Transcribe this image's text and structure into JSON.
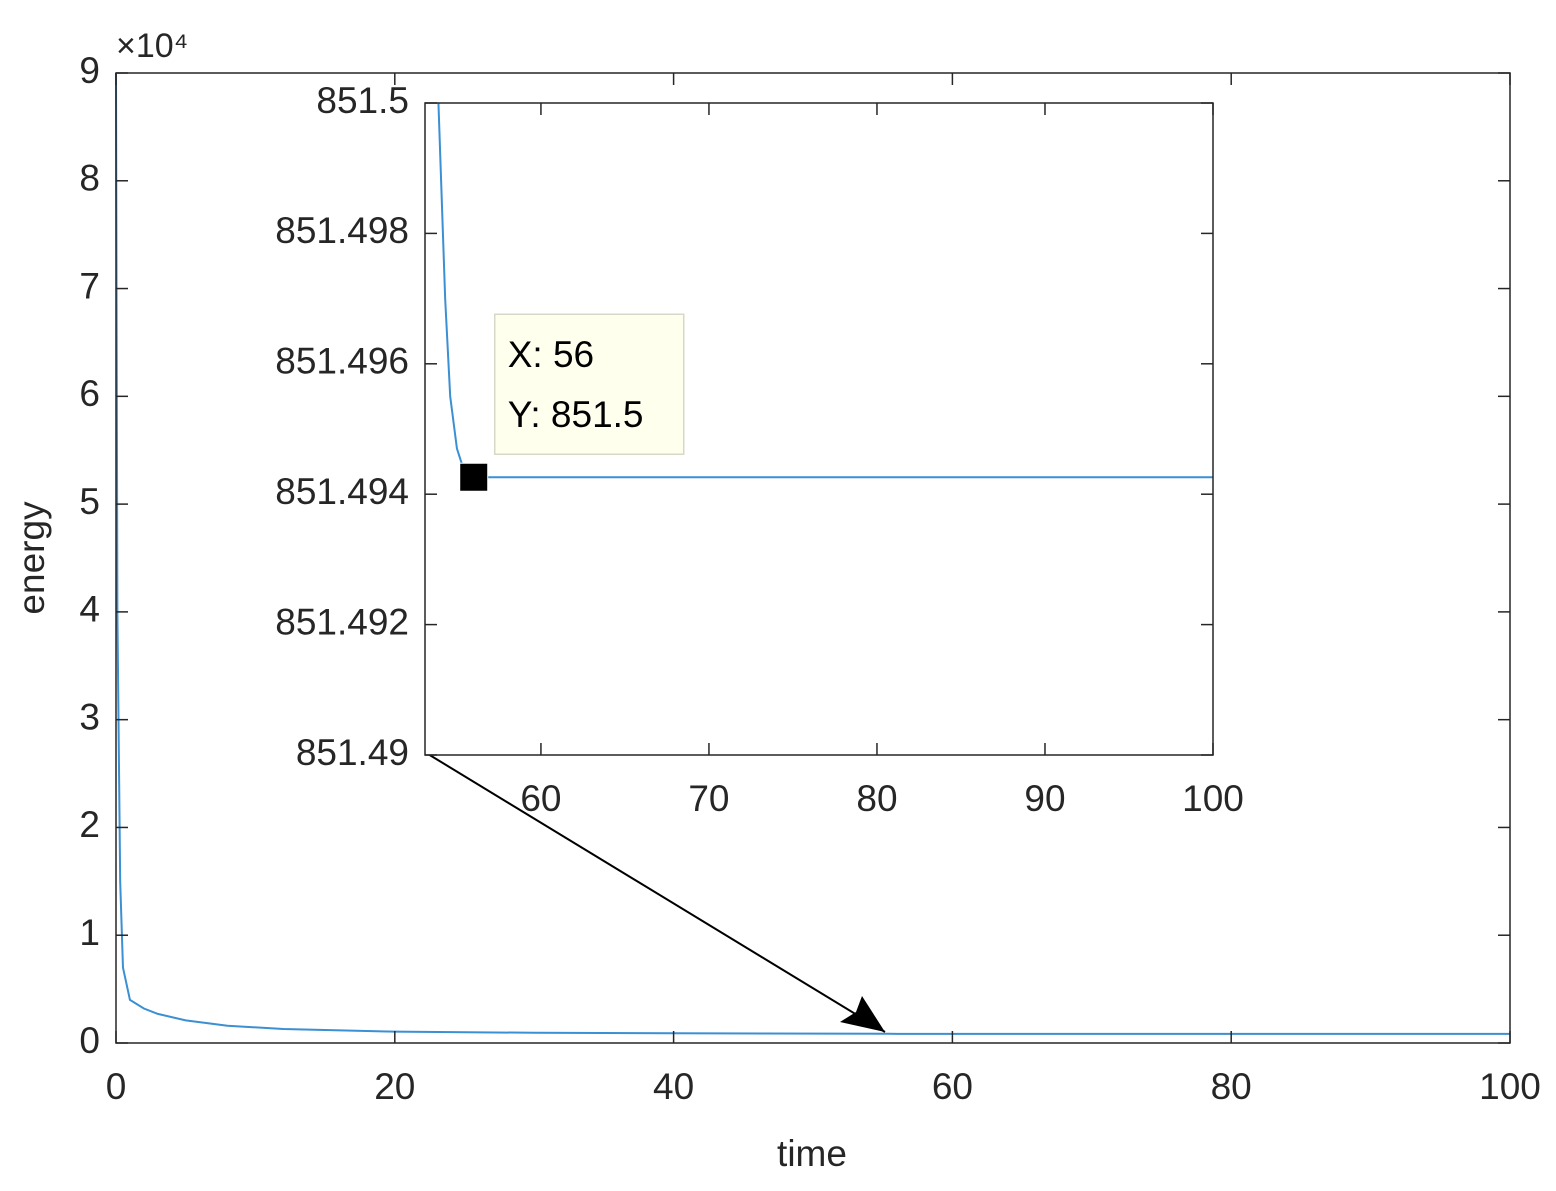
{
  "chart_data": [
    {
      "type": "line",
      "xlabel": "time",
      "ylabel": "energy",
      "y_multiplier": "×10⁴",
      "x": [
        0,
        0.1,
        0.3,
        0.5,
        1,
        2,
        3,
        5,
        8,
        12,
        20,
        30,
        40,
        56,
        80,
        100
      ],
      "values": [
        90000,
        40000,
        15000,
        7000,
        4000,
        3200,
        2700,
        2100,
        1600,
        1300,
        1050,
        950,
        900,
        851.494,
        851.494,
        851.494
      ],
      "color": "#3b8fd3",
      "xlim": [
        0,
        100
      ],
      "xticks": [
        0,
        20,
        40,
        60,
        80,
        100
      ],
      "ylim": [
        0,
        90000
      ],
      "yticks": [
        {
          "value": 0,
          "label": "0"
        },
        {
          "value": 10000,
          "label": "1"
        },
        {
          "value": 20000,
          "label": "2"
        },
        {
          "value": 30000,
          "label": "3"
        },
        {
          "value": 40000,
          "label": "4"
        },
        {
          "value": 50000,
          "label": "5"
        },
        {
          "value": 60000,
          "label": "6"
        },
        {
          "value": 70000,
          "label": "7"
        },
        {
          "value": 80000,
          "label": "8"
        },
        {
          "value": 90000,
          "label": "9"
        }
      ]
    },
    {
      "type": "line",
      "x": [
        53.9,
        54.1,
        54.3,
        54.6,
        55,
        55.5,
        56,
        100
      ],
      "values": [
        851.5,
        851.4985,
        851.497,
        851.4955,
        851.4947,
        851.4943,
        851.49426,
        851.49426
      ],
      "color": "#3b8fd3",
      "xlim": [
        53.1,
        100
      ],
      "xticks": [
        60,
        70,
        80,
        90,
        100
      ],
      "ylim": [
        851.49,
        851.5
      ],
      "yticks": [
        851.49,
        851.492,
        851.494,
        851.496,
        851.498,
        851.5
      ],
      "datatip": {
        "x": 56,
        "y": 851.49426,
        "label_x": "X: 56",
        "label_y": "Y: 851.5"
      }
    }
  ]
}
